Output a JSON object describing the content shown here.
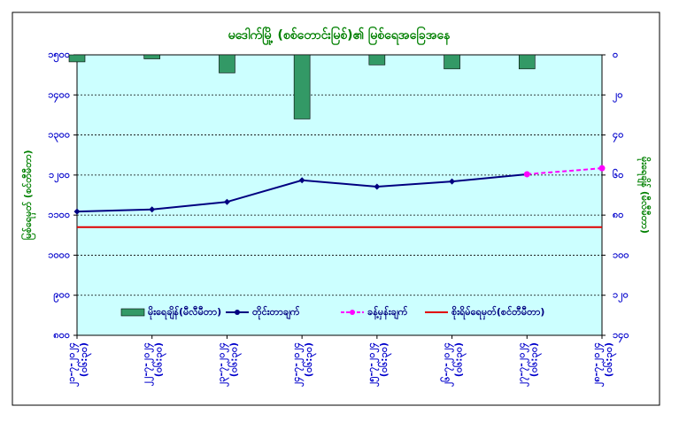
{
  "chart_data": {
    "type": "combo",
    "title": "မဒေါက်မြို့ (စစ်တောင်းမြစ်)၏ မြစ်ရေအခြေအနေ",
    "ylabel": "မြစ်ရေမှတ် (စင်တီမီတာ)",
    "y2label": "မိုးရေချိန် (မီလီမီတာ)",
    "categories": [
      [
        "၂၁-၇-၂၀၂၄",
        "(၀၆:၃၀)"
      ],
      [
        "၂၂-၇-၂၀၂၄",
        "(၀၆:၃၀)"
      ],
      [
        "၂၃-၇-၂၀၂၄",
        "(၀၆:၃၀)"
      ],
      [
        "၂၄-၇-၂၀၂၄",
        "(၀၆:၃၀)"
      ],
      [
        "၂၅-၇-၂၀၂၄",
        "(၀၆:၃၀)"
      ],
      [
        "၂၆-၇-၂၀၂၄",
        "(၀၆:၃၀)"
      ],
      [
        "၂၇-၇-၂၀၂၄",
        "(၀၆:၃၀)"
      ],
      [
        "၂၈-၇-၂၀၂၄",
        "(၀၆:၃၀)"
      ]
    ],
    "series": [
      {
        "name": "မိုးရေချိန်(မီလီမီတာ)",
        "type": "bar",
        "axis": "y2",
        "color": "#339966",
        "values": [
          3.5,
          2,
          9,
          32,
          5,
          7,
          7,
          null
        ]
      },
      {
        "name": "တိုင်းတာချက်",
        "type": "line",
        "color": "#000080",
        "values": [
          1109,
          1114,
          1133,
          1187,
          1171,
          1184,
          1202,
          null
        ]
      },
      {
        "name": "ခန့်မှန်းချက်",
        "type": "line",
        "dashed": true,
        "color": "#ff00ff",
        "values": [
          null,
          null,
          null,
          null,
          null,
          null,
          1202,
          1217
        ]
      }
    ],
    "threshold": {
      "name": "စိုးရိမ်ရေမှတ်(စင်တီမီတာ)",
      "value": 1070,
      "color": "#e00000"
    },
    "ylim": [
      800,
      1500
    ],
    "yticks": [
      {
        "value": 800,
        "label": "၈၀၀"
      },
      {
        "value": 900,
        "label": "၉၀၀"
      },
      {
        "value": 1000,
        "label": "၁၀၀၀"
      },
      {
        "value": 1100,
        "label": "၁၁၀၀"
      },
      {
        "value": 1200,
        "label": "၁၂၀၀"
      },
      {
        "value": 1300,
        "label": "၁၃၀၀"
      },
      {
        "value": 1400,
        "label": "၁၄၀၀"
      },
      {
        "value": 1500,
        "label": "၁၅၀၀"
      }
    ],
    "y2lim": [
      0,
      140
    ],
    "y2_inverted": true,
    "y2ticks": [
      {
        "value": 0,
        "label": "၀"
      },
      {
        "value": 20,
        "label": "၂၀"
      },
      {
        "value": 40,
        "label": "၄၀"
      },
      {
        "value": 60,
        "label": "၆၀"
      },
      {
        "value": 80,
        "label": "၈၀"
      },
      {
        "value": 100,
        "label": "၁၀၀"
      },
      {
        "value": 120,
        "label": "၁၂၀"
      },
      {
        "value": 140,
        "label": "၁၄၀"
      }
    ],
    "grid": true,
    "legend": "bottom"
  }
}
